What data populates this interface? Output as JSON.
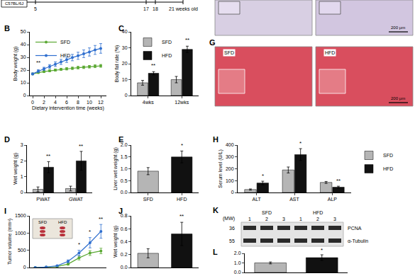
{
  "chart_data": [
    {
      "label": "B",
      "type": "line",
      "marker": "circle",
      "x": [
        0,
        1,
        2,
        3,
        4,
        5,
        6,
        7,
        8,
        9,
        10,
        11,
        12
      ],
      "series": [
        {
          "name": "SFD",
          "color": "#5aa832",
          "values": [
            17,
            18,
            18.8,
            19.4,
            20,
            20.6,
            21,
            21.4,
            21.9,
            22.2,
            22.6,
            23,
            23.3
          ],
          "errors": [
            0.6,
            0.6,
            0.7,
            0.7,
            0.8,
            0.8,
            0.9,
            0.9,
            1,
            1,
            1,
            1.1,
            1.1
          ]
        },
        {
          "name": "HFD",
          "color": "#2f6fcf",
          "values": [
            17,
            19.2,
            21,
            22.8,
            24.6,
            26.4,
            28.2,
            29.8,
            31.2,
            32.8,
            34.2,
            35.8,
            37
          ],
          "errors": [
            0.7,
            1,
            1.2,
            1.5,
            1.8,
            2,
            2.2,
            2.5,
            2.8,
            3,
            3.2,
            3.5,
            3.8
          ]
        }
      ],
      "xlabel": "Dietary intervention time (weeks)",
      "ylabel": "Body weight (g)",
      "xlim": [
        -0.5,
        13
      ],
      "xticks": [
        0,
        2,
        4,
        6,
        8,
        10,
        12
      ],
      "ylim": [
        0,
        50
      ],
      "yticks": [
        0,
        10,
        20,
        30,
        40,
        50
      ],
      "legend": "upper left",
      "annotations": [
        {
          "x": 1,
          "y": 22,
          "text": "**"
        }
      ]
    },
    {
      "label": "C",
      "type": "bar",
      "categories": [
        "4wks",
        "12wks"
      ],
      "series": [
        {
          "name": "SFD",
          "color": "#b5b5b5",
          "values": [
            8,
            10
          ],
          "errors": [
            1.5,
            2
          ]
        },
        {
          "name": "HFD",
          "color": "#111111",
          "values": [
            14,
            29
          ],
          "errors": [
            1,
            2
          ]
        }
      ],
      "ylabel": "Body fat rate (%)",
      "ylim": [
        0,
        40
      ],
      "yticks": [
        0,
        10,
        20,
        30,
        40
      ],
      "legend": "upper left",
      "annotations": [
        {
          "x": 0,
          "y": 16,
          "text": "**",
          "series": "HFD"
        },
        {
          "x": 1,
          "y": 32,
          "text": "**",
          "series": "HFD"
        }
      ]
    },
    {
      "label": "D",
      "type": "bar",
      "categories": [
        "PWAT",
        "GWAT"
      ],
      "series": [
        {
          "name": "SFD",
          "color": "#b5b5b5",
          "values": [
            0.2,
            0.25
          ],
          "errors": [
            0.15,
            0.15
          ]
        },
        {
          "name": "HFD",
          "color": "#111111",
          "values": [
            1.6,
            2.0
          ],
          "errors": [
            0.35,
            0.6
          ]
        }
      ],
      "ylabel": "Wet weight (g)",
      "ylim": [
        0,
        3
      ],
      "yticks": [
        0,
        1,
        2,
        3
      ],
      "annotations": [
        {
          "x": 0,
          "y": 2.0,
          "text": "**",
          "series": "HFD"
        },
        {
          "x": 1,
          "y": 2.65,
          "text": "**",
          "series": "HFD"
        }
      ]
    },
    {
      "label": "E",
      "type": "bar",
      "categories": [
        "SFD",
        "HFD"
      ],
      "values": [
        0.9,
        1.5
      ],
      "errors": [
        0.15,
        0.25
      ],
      "colors": [
        "#b5b5b5",
        "#111111"
      ],
      "ylabel": "Liver wet weight (g)",
      "ylim": [
        0,
        2
      ],
      "yticks": [
        {
          "value": 0,
          "label": "0.0"
        },
        0.5,
        {
          "value": 1,
          "label": "1.0"
        },
        1.5,
        {
          "value": 2,
          "label": "2.0"
        }
      ],
      "annotations": [
        {
          "x": 1,
          "y": 1.78,
          "text": "*"
        }
      ]
    },
    {
      "label": "H",
      "type": "bar",
      "categories": [
        "ALT",
        "AST",
        "ALP"
      ],
      "series": [
        {
          "name": "SFD",
          "color": "#b5b5b5",
          "values": [
            25,
            190,
            85
          ],
          "errors": [
            5,
            25,
            8
          ]
        },
        {
          "name": "HFD",
          "color": "#111111",
          "values": [
            80,
            320,
            45
          ],
          "errors": [
            15,
            50,
            8
          ]
        }
      ],
      "ylabel": "Serum level (U/L)",
      "ylim": [
        0,
        400
      ],
      "yticks": [
        0,
        100,
        200,
        300,
        400
      ],
      "legend": "right",
      "annotations": [
        {
          "x": 0,
          "y": 100,
          "text": "*",
          "series": "HFD"
        },
        {
          "x": 1,
          "y": 375,
          "text": "*",
          "series": "HFD"
        },
        {
          "x": 2,
          "y": 58,
          "text": "**",
          "series": "HFD"
        }
      ]
    },
    {
      "label": "I",
      "type": "line",
      "marker": "circle",
      "x": [
        0,
        1,
        2,
        3,
        4,
        5,
        6
      ],
      "series": [
        {
          "color": "#5aa832",
          "values": [
            0,
            10,
            30,
            100,
            280,
            420,
            480
          ],
          "errors": [
            0,
            5,
            10,
            30,
            60,
            70,
            80
          ]
        },
        {
          "color": "#2f6fcf",
          "values": [
            0,
            15,
            50,
            180,
            420,
            720,
            1050
          ],
          "errors": [
            0,
            5,
            15,
            40,
            80,
            150,
            200
          ]
        }
      ],
      "inset_labels": [
        "SFD",
        "HFD"
      ],
      "ylabel": "Tumor volume (mm³)",
      "xlim": [
        -0.5,
        6.5
      ],
      "ylim": [
        0,
        1500
      ],
      "yticks": [
        0,
        500,
        1000,
        1500
      ],
      "tick_labels": "y",
      "annotations": [
        {
          "x": 4,
          "y": 530,
          "text": "*"
        },
        {
          "x": 5,
          "y": 900,
          "text": "*"
        },
        {
          "x": 6,
          "y": 1280,
          "text": "**"
        }
      ]
    },
    {
      "label": "J",
      "type": "bar",
      "categories": [
        null,
        null
      ],
      "values": [
        0.22,
        0.52
      ],
      "errors": [
        0.07,
        0.18
      ],
      "colors": [
        "#b5b5b5",
        "#111111"
      ],
      "ylabel": "Wet weight (g)",
      "ylim": [
        0,
        0.8
      ],
      "yticks": [
        {
          "value": 0,
          "label": "0.0"
        },
        0.2,
        0.4,
        0.6,
        0.8
      ],
      "tick_labels": "y",
      "annotations": [
        {
          "x": 1,
          "y": 0.72,
          "text": "**"
        }
      ]
    },
    {
      "label": "L",
      "type": "bar",
      "categories": [
        null,
        null
      ],
      "values": [
        1.0,
        1.55
      ],
      "errors": [
        0.1,
        0.3
      ],
      "colors": [
        "#b5b5b5",
        "#111111"
      ],
      "ylim": [
        0,
        2
      ],
      "yticks": [
        {
          "value": 0,
          "label": "0.0"
        },
        {
          "value": 1,
          "label": "1.0"
        },
        {
          "value": 2,
          "label": "2.0"
        }
      ],
      "tick_labels": "y",
      "annotations": [
        {
          "x": 1,
          "y": 1.88,
          "text": "*"
        }
      ]
    }
  ],
  "timeline": {
    "strain": "C57BL/6J",
    "ticks": [
      {
        "value": 5,
        "label": "5"
      },
      {
        "value": 17,
        "label": "17"
      },
      {
        "value": 18,
        "label": "18"
      },
      {
        "value": 21,
        "label": "21 weeks old"
      }
    ]
  },
  "histology": [
    {
      "scale_bar": "200 μm"
    },
    {
      "label": "G",
      "images": [
        "SFD",
        "HFD"
      ],
      "scale_bar": "200 μm"
    }
  ],
  "blot": {
    "label": "K",
    "groups": [
      "SFD",
      "HFD"
    ],
    "lanes": [
      "1",
      "2",
      "3"
    ],
    "mw_header": "(MW)",
    "bands": [
      {
        "name": "PCNA",
        "mw": "36"
      },
      {
        "name": "α-Tubulin",
        "mw": "55"
      }
    ]
  }
}
